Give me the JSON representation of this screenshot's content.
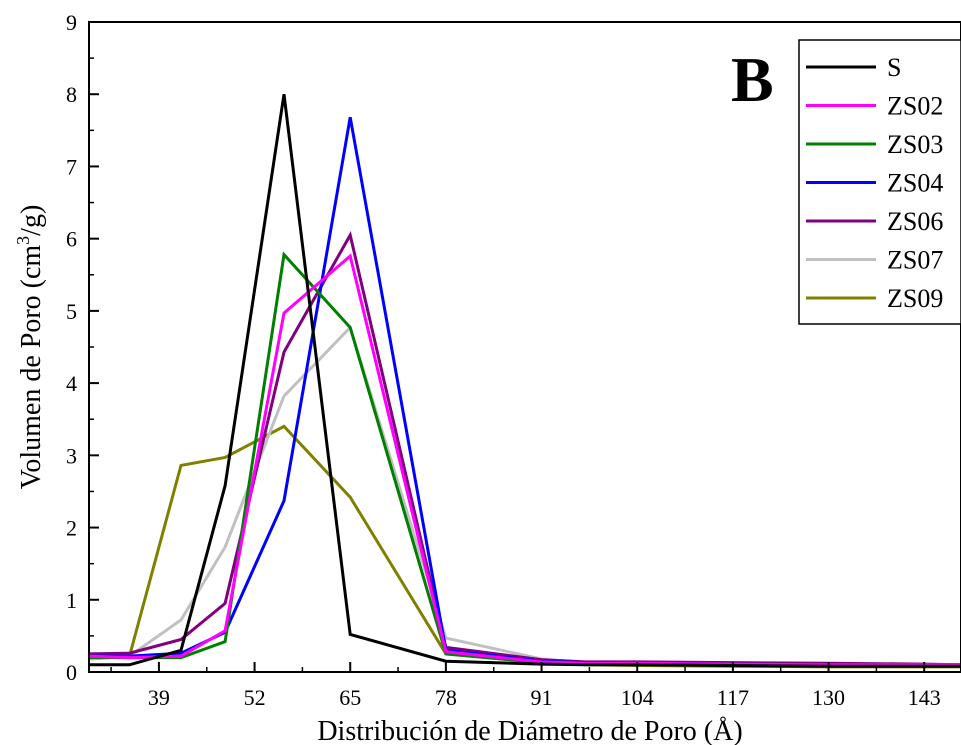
{
  "chart_data": {
    "type": "line",
    "panel_label": "B",
    "xlabel": "Distribución de Diámetro de Poro (Å)",
    "ylabel_prefix": "Volumen de Poro (cm",
    "ylabel_sup": "3",
    "ylabel_suffix": "/g)",
    "xlim": [
      29.5,
      148
    ],
    "ylim": [
      0,
      9
    ],
    "x_ticks": [
      39,
      52,
      65,
      78,
      91,
      104,
      117,
      130,
      143
    ],
    "y_ticks": [
      0,
      1,
      2,
      3,
      4,
      5,
      6,
      7,
      8,
      9
    ],
    "grid": false,
    "legend_position": "top-right",
    "x": [
      29.5,
      35,
      42,
      48,
      56,
      65,
      78,
      91,
      97,
      104,
      117,
      130,
      143,
      148
    ],
    "series": [
      {
        "name": "S",
        "color": "#000000",
        "values": [
          0.1,
          0.1,
          0.3,
          2.58,
          8.0,
          0.52,
          0.15,
          0.11,
          0.1,
          0.1,
          0.09,
          0.08,
          0.08,
          0.08
        ]
      },
      {
        "name": "ZS02",
        "color": "#ff00ff",
        "values": [
          0.22,
          0.2,
          0.22,
          0.57,
          4.97,
          5.76,
          0.28,
          0.14,
          0.12,
          0.12,
          0.11,
          0.1,
          0.1,
          0.1
        ]
      },
      {
        "name": "ZS03",
        "color": "#008000",
        "values": [
          0.2,
          0.2,
          0.2,
          0.42,
          5.78,
          4.77,
          0.25,
          0.13,
          0.11,
          0.11,
          0.1,
          0.09,
          0.09,
          0.09
        ]
      },
      {
        "name": "ZS04",
        "color": "#0000ff",
        "values": [
          0.22,
          0.22,
          0.26,
          0.55,
          2.37,
          7.68,
          0.3,
          0.15,
          0.13,
          0.12,
          0.11,
          0.1,
          0.1,
          0.1
        ]
      },
      {
        "name": "ZS06",
        "color": "#800080",
        "values": [
          0.25,
          0.26,
          0.45,
          0.95,
          4.43,
          6.05,
          0.34,
          0.17,
          0.14,
          0.14,
          0.13,
          0.12,
          0.11,
          0.1
        ]
      },
      {
        "name": "ZS07",
        "color": "#c0c0c0",
        "values": [
          0.18,
          0.22,
          0.72,
          1.73,
          3.82,
          4.77,
          0.47,
          0.18,
          0.13,
          0.12,
          0.11,
          0.1,
          0.1,
          0.09
        ]
      },
      {
        "name": "ZS09",
        "color": "#808000",
        "values": [
          0.18,
          0.22,
          2.86,
          2.97,
          3.4,
          2.42,
          0.25,
          0.13,
          0.1,
          0.09,
          0.08,
          0.07,
          0.07,
          0.07
        ]
      }
    ]
  }
}
